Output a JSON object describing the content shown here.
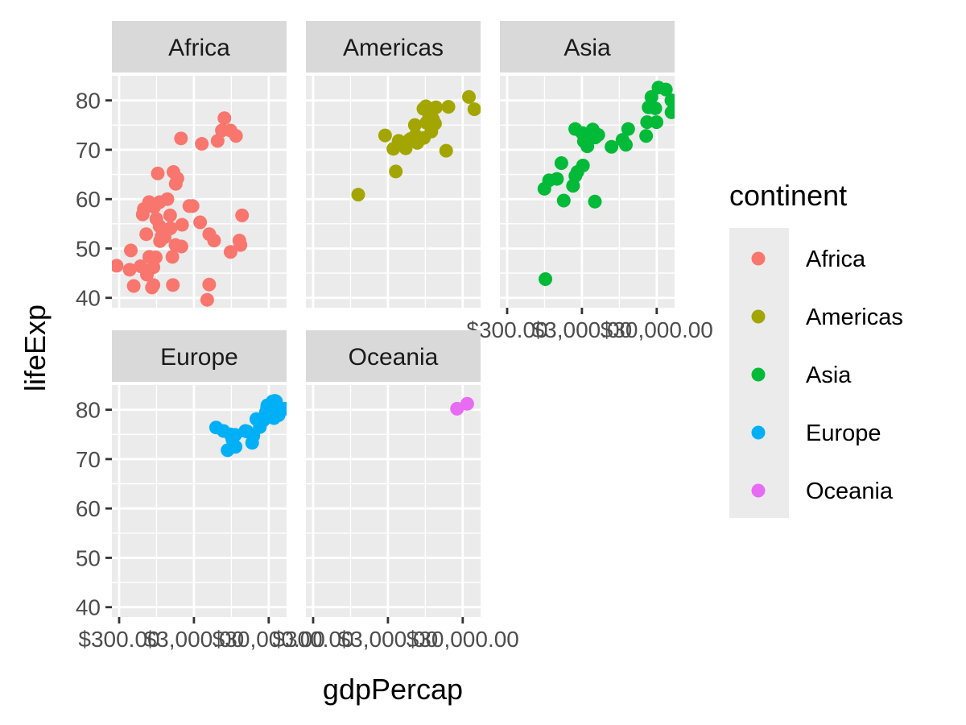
{
  "chart_data": {
    "type": "scatter",
    "facet_by": "continent",
    "xlabel": "gdpPercap",
    "ylabel": "lifeExp",
    "x_scale": "log10",
    "x_tick_labels": [
      "$300.00",
      "$3,000.00",
      "$30,000.00"
    ],
    "x_tick_values": [
      300,
      3000,
      30000
    ],
    "y_ticks": [
      40,
      50,
      60,
      70,
      80
    ],
    "xlim": [
      240,
      52000
    ],
    "ylim": [
      38,
      85
    ],
    "grid": true,
    "legend_title": "continent",
    "legend_position": "right",
    "panels": [
      {
        "name": "Africa",
        "color": "#F8766D",
        "points": [
          [
            2014,
            72.3
          ],
          [
            4797,
            42.7
          ],
          [
            1441,
            56.7
          ],
          [
            12570,
            50.7
          ],
          [
            1217,
            52.3
          ],
          [
            430,
            49.6
          ],
          [
            2042,
            50.4
          ],
          [
            706,
            44.7
          ],
          [
            1704,
            50.7
          ],
          [
            986,
            65.2
          ],
          [
            278,
            46.5
          ],
          [
            3633,
            55.3
          ],
          [
            1545,
            48.3
          ],
          [
            2082,
            54.8
          ],
          [
            5581,
            51.6
          ],
          [
            12154,
            51.6
          ],
          [
            641,
            58.0
          ],
          [
            691,
            52.9
          ],
          [
            13206,
            56.7
          ],
          [
            753,
            59.4
          ],
          [
            1327,
            60.0
          ],
          [
            943,
            56.0
          ],
          [
            580,
            46.4
          ],
          [
            1463,
            54.1
          ],
          [
            1569,
            42.6
          ],
          [
            415,
            45.7
          ],
          [
            9254,
            73.9
          ],
          [
            1044,
            59.4
          ],
          [
            759,
            48.3
          ],
          [
            1042,
            54.5
          ],
          [
            1803,
            64.2
          ],
          [
            10957,
            72.8
          ],
          [
            3820,
            71.2
          ],
          [
            824,
            42.1
          ],
          [
            4811,
            52.9
          ],
          [
            620,
            56.9
          ],
          [
            2874,
            58.6
          ],
          [
            7670,
            76.4
          ],
          [
            863,
            46.2
          ],
          [
            1598,
            65.5
          ],
          [
            1712,
            63.1
          ],
          [
            862,
            42.6
          ],
          [
            926,
            48.2
          ],
          [
            9270,
            49.3
          ],
          [
            2602,
            58.6
          ],
          [
            4513,
            39.6
          ],
          [
            1107,
            52.5
          ],
          [
            882,
            58.4
          ],
          [
            7093,
            73.9
          ],
          [
            1056,
            51.5
          ],
          [
            470,
            42.4
          ],
          [
            6223,
            71.8
          ]
        ]
      },
      {
        "name": "Americas",
        "color": "#A3A500",
        "points": [
          [
            12779,
            75.3
          ],
          [
            3822,
            65.6
          ],
          [
            9066,
            72.4
          ],
          [
            36319,
            80.7
          ],
          [
            13172,
            78.6
          ],
          [
            7007,
            72.9
          ],
          [
            9645,
            78.8
          ],
          [
            8948,
            78.3
          ],
          [
            6025,
            72.2
          ],
          [
            6873,
            75.0
          ],
          [
            5728,
            71.9
          ],
          [
            5186,
            70.3
          ],
          [
            1202,
            60.9
          ],
          [
            3548,
            70.2
          ],
          [
            7321,
            72.6
          ],
          [
            11978,
            76.2
          ],
          [
            2749,
            72.9
          ],
          [
            9809,
            75.5
          ],
          [
            4173,
            71.8
          ],
          [
            7409,
            71.4
          ],
          [
            19329,
            78.7
          ],
          [
            18009,
            69.8
          ],
          [
            42952,
            78.2
          ],
          [
            10611,
            76.4
          ],
          [
            11416,
            73.7
          ]
        ]
      },
      {
        "name": "Asia",
        "color": "#00BA38",
        "points": [
          [
            975,
            43.8
          ],
          [
            29796,
            75.6
          ],
          [
            1391,
            64.1
          ],
          [
            1713,
            59.7
          ],
          [
            4959,
            73.0
          ],
          [
            39725,
            82.2
          ],
          [
            2452,
            64.7
          ],
          [
            3541,
            70.7
          ],
          [
            11606,
            71.0
          ],
          [
            4471,
            59.5
          ],
          [
            25523,
            80.7
          ],
          [
            31656,
            82.6
          ],
          [
            4519,
            72.5
          ],
          [
            1593,
            67.3
          ],
          [
            23348,
            78.6
          ],
          [
            47307,
            77.6
          ],
          [
            10461,
            72.0
          ],
          [
            12452,
            74.2
          ],
          [
            3096,
            66.8
          ],
          [
            944,
            62.1
          ],
          [
            1091,
            63.8
          ],
          [
            22316,
            75.6
          ],
          [
            2606,
            65.5
          ],
          [
            3190,
            71.7
          ],
          [
            21655,
            72.8
          ],
          [
            47143,
            80.0
          ],
          [
            3970,
            72.4
          ],
          [
            4185,
            74.1
          ],
          [
            28718,
            78.4
          ],
          [
            7458,
            70.6
          ],
          [
            2442,
            74.2
          ],
          [
            3025,
            73.4
          ],
          [
            2281,
            62.7
          ]
        ]
      },
      {
        "name": "Europe",
        "color": "#00B0F6",
        "points": [
          [
            5937,
            76.4
          ],
          [
            36126,
            79.8
          ],
          [
            33693,
            79.4
          ],
          [
            7446,
            75.7
          ],
          [
            10681,
            74.9
          ],
          [
            14619,
            75.7
          ],
          [
            22833,
            76.5
          ],
          [
            35278,
            78.3
          ],
          [
            33207,
            79.3
          ],
          [
            30470,
            80.7
          ],
          [
            32170,
            79.4
          ],
          [
            27538,
            79.5
          ],
          [
            18008,
            73.3
          ],
          [
            36181,
            81.8
          ],
          [
            40676,
            78.9
          ],
          [
            28570,
            80.5
          ],
          [
            9254,
            75.0
          ],
          [
            36798,
            79.5
          ],
          [
            49357,
            80.2
          ],
          [
            15390,
            75.6
          ],
          [
            20510,
            78.1
          ],
          [
            10808,
            72.5
          ],
          [
            9787,
            74.0
          ],
          [
            18679,
            74.7
          ],
          [
            25768,
            77.9
          ],
          [
            28821,
            80.9
          ],
          [
            33860,
            81.7
          ],
          [
            37506,
            81.7
          ],
          [
            8458,
            71.8
          ],
          [
            33203,
            79.4
          ]
        ]
      },
      {
        "name": "Oceania",
        "color": "#E76BF3",
        "points": [
          [
            34435,
            81.2
          ],
          [
            25185,
            80.2
          ]
        ]
      }
    ]
  }
}
